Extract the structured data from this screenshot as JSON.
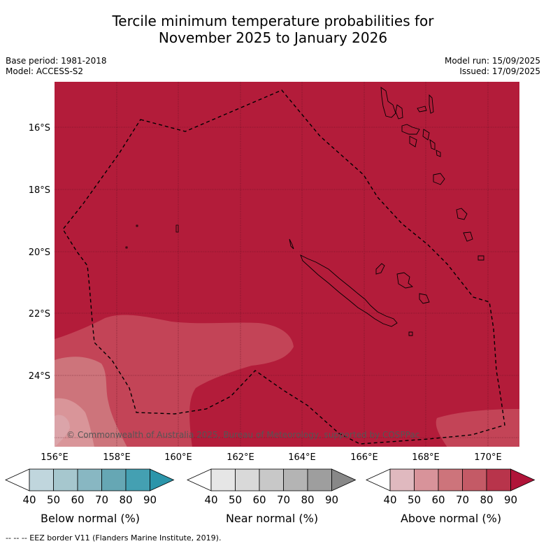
{
  "header": {
    "title_line1": "Tercile minimum temperature probabilities for",
    "title_line2": "November 2025 to January 2026",
    "base_period": "Base period: 1981-2018",
    "model": "Model: ACCESS-S2",
    "model_run": "Model run: 15/09/2025",
    "issued": "Issued: 17/09/2025"
  },
  "map": {
    "lat_labels": [
      "16°S",
      "18°S",
      "20°S",
      "22°S",
      "24°S"
    ],
    "lon_labels": [
      "156°E",
      "158°E",
      "160°E",
      "162°E",
      "164°E",
      "166°E",
      "168°E",
      "170°E"
    ],
    "copyright": "© Commonwealth of Australia 2025, Bureau of Meteorology, supported by COSPPac",
    "colors": {
      "above_80_90": "#b31c3a",
      "above_70_80": "#c34457",
      "above_60_70": "#cd747b",
      "above_50_60": "#d99599"
    }
  },
  "legend": {
    "ticks": [
      "40",
      "50",
      "60",
      "70",
      "80",
      "90"
    ],
    "below": {
      "label": "Below normal (%)",
      "colors": [
        "#ffffff",
        "#c0d6dd",
        "#a6c7ce",
        "#88b7c2",
        "#66a7b4",
        "#44a0b2",
        "#2b95aa"
      ]
    },
    "near": {
      "label": "Near normal (%)",
      "colors": [
        "#ffffff",
        "#e6e6e6",
        "#d9d9d9",
        "#c8c8c8",
        "#b4b4b4",
        "#9e9e9e",
        "#888888"
      ]
    },
    "above": {
      "label": "Above normal (%)",
      "colors": [
        "#ffffff",
        "#e0b9bf",
        "#d8939a",
        "#cd747b",
        "#c45a66",
        "#b8344b",
        "#b01439"
      ]
    }
  },
  "footer": {
    "eez": "--  --  -- EEZ border V11 (Flanders Marine Institute, 2019)."
  }
}
